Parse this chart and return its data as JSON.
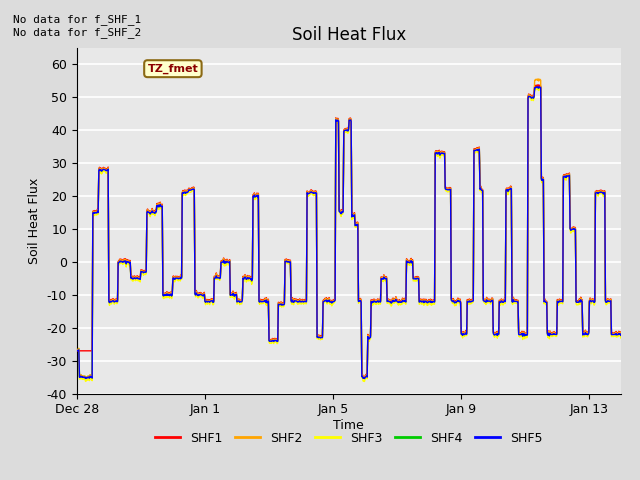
{
  "title": "Soil Heat Flux",
  "xlabel": "Time",
  "ylabel": "Soil Heat Flux",
  "ylim": [
    -40,
    65
  ],
  "yticks": [
    -40,
    -30,
    -20,
    -10,
    0,
    10,
    20,
    30,
    40,
    50,
    60
  ],
  "annotation_text": "No data for f_SHF_1\nNo data for f_SHF_2",
  "legend_label": "TZ_fmet",
  "legend_entries": [
    "SHF1",
    "SHF2",
    "SHF3",
    "SHF4",
    "SHF5"
  ],
  "legend_colors": [
    "#ff0000",
    "#ffa500",
    "#ffff00",
    "#00cc00",
    "#0000ff"
  ],
  "line_colors": {
    "SHF1": "#ff0000",
    "SHF2": "#ffa500",
    "SHF3": "#ffff00",
    "SHF4": "#00cc00",
    "SHF5": "#0000ff"
  },
  "xtick_labels": [
    "Dec 28",
    "Jan 1",
    "Jan 5",
    "Jan 9",
    "Jan 13"
  ],
  "xtick_positions": [
    0,
    4,
    8,
    12,
    16
  ],
  "background_color": "#dcdcdc",
  "axes_facecolor": "#dcdcdc",
  "plot_facecolor": "#e8e8e8",
  "grid_color": "#ffffff",
  "title_fontsize": 12,
  "axis_label_fontsize": 9,
  "tick_fontsize": 9
}
